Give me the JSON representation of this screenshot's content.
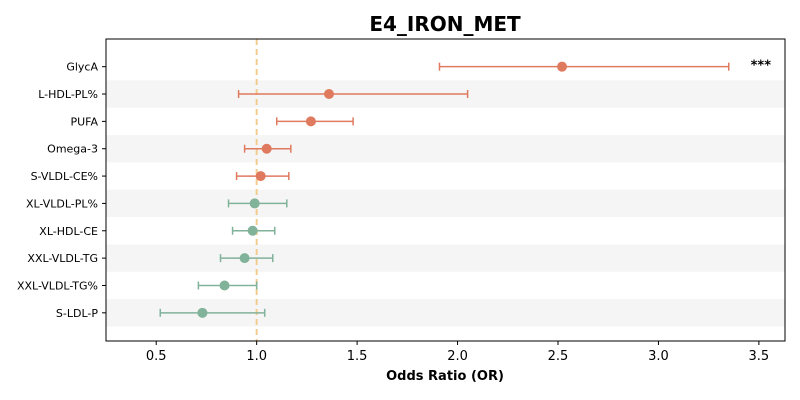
{
  "chart_data": {
    "type": "forest",
    "title": "E4_IRON_MET",
    "xlabel": "Odds Ratio (OR)",
    "xlim": [
      0.25,
      3.63
    ],
    "xticks": [
      0.5,
      1.0,
      1.5,
      2.0,
      2.5,
      3.0,
      3.5
    ],
    "xtick_labels": [
      "0.5",
      "1.0",
      "1.5",
      "2.0",
      "2.5",
      "3.0",
      "3.5"
    ],
    "reference_line": 1.0,
    "grid": false,
    "colors": {
      "positive": "#e07a5f",
      "negative": "#81b29a",
      "reference": "#f2cc8f",
      "band": "#f5f5f5"
    },
    "rows": [
      {
        "label": "GlycA",
        "or": 2.52,
        "lo": 1.91,
        "hi": 3.35,
        "color": "positive",
        "sig": "***"
      },
      {
        "label": "L-HDL-PL%",
        "or": 1.36,
        "lo": 0.91,
        "hi": 2.05,
        "color": "positive",
        "sig": ""
      },
      {
        "label": "PUFA",
        "or": 1.27,
        "lo": 1.1,
        "hi": 1.48,
        "color": "positive",
        "sig": ""
      },
      {
        "label": "Omega-3",
        "or": 1.05,
        "lo": 0.94,
        "hi": 1.17,
        "color": "positive",
        "sig": ""
      },
      {
        "label": "S-VLDL-CE%",
        "or": 1.02,
        "lo": 0.9,
        "hi": 1.16,
        "color": "positive",
        "sig": ""
      },
      {
        "label": "XL-VLDL-PL%",
        "or": 0.99,
        "lo": 0.86,
        "hi": 1.15,
        "color": "negative",
        "sig": ""
      },
      {
        "label": "XL-HDL-CE",
        "or": 0.98,
        "lo": 0.88,
        "hi": 1.09,
        "color": "negative",
        "sig": ""
      },
      {
        "label": "XXL-VLDL-TG",
        "or": 0.94,
        "lo": 0.82,
        "hi": 1.08,
        "color": "negative",
        "sig": ""
      },
      {
        "label": "XXL-VLDL-TG%",
        "or": 0.84,
        "lo": 0.71,
        "hi": 1.0,
        "color": "negative",
        "sig": ""
      },
      {
        "label": "S-LDL-P",
        "or": 0.73,
        "lo": 0.52,
        "hi": 1.04,
        "color": "negative",
        "sig": ""
      }
    ]
  }
}
